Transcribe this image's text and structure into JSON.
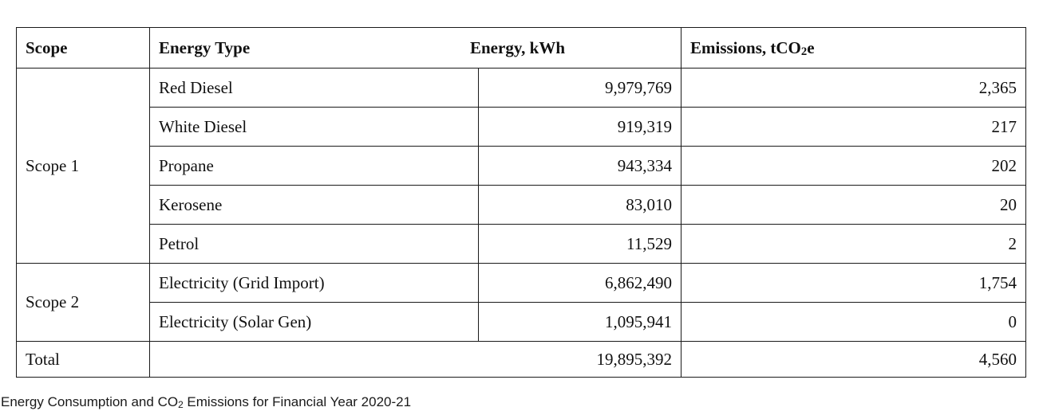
{
  "table": {
    "headers": {
      "scope": "Scope",
      "energy_type": "Energy Type",
      "energy": "Energy, kWh",
      "emissions_prefix": "Emissions, tCO",
      "emissions_sub": "2",
      "emissions_suffix": "e"
    },
    "groups": [
      {
        "scope": "Scope 1",
        "rows": [
          {
            "energy_type": "Red Diesel",
            "energy_kwh": "9,979,769",
            "emissions_tco2e": "2,365"
          },
          {
            "energy_type": "White Diesel",
            "energy_kwh": "919,319",
            "emissions_tco2e": "217"
          },
          {
            "energy_type": "Propane",
            "energy_kwh": "943,334",
            "emissions_tco2e": "202"
          },
          {
            "energy_type": "Kerosene",
            "energy_kwh": "83,010",
            "emissions_tco2e": "20"
          },
          {
            "energy_type": "Petrol",
            "energy_kwh": "11,529",
            "emissions_tco2e": "2"
          }
        ]
      },
      {
        "scope": "Scope 2",
        "rows": [
          {
            "energy_type": "Electricity (Grid Import)",
            "energy_kwh": "6,862,490",
            "emissions_tco2e": "1,754"
          },
          {
            "energy_type": "Electricity (Solar Gen)",
            "energy_kwh": "1,095,941",
            "emissions_tco2e": "0"
          }
        ]
      }
    ],
    "total": {
      "label": "Total",
      "energy_kwh": "19,895,392",
      "emissions_tco2e": "4,560"
    }
  },
  "caption": {
    "prefix": "Energy Consumption and CO",
    "sub": "2",
    "suffix": " Emissions for Financial Year 2020-21"
  }
}
